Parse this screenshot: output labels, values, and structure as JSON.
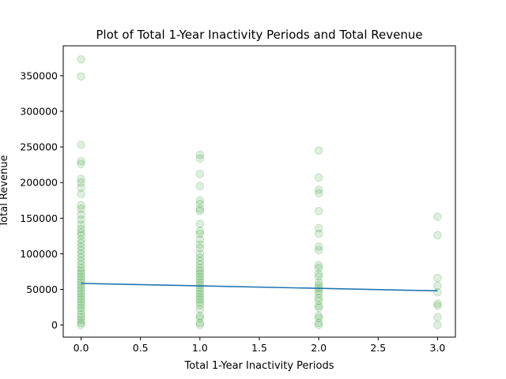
{
  "chart_data": {
    "type": "scatter",
    "title": "Plot of Total 1-Year Inactivity Periods and Total Revenue",
    "xlabel": "Total 1-Year Inactivity Periods",
    "ylabel": "Total Revenue",
    "xlim": [
      -0.15,
      3.15
    ],
    "ylim": [
      -17000,
      392000
    ],
    "x_ticks": [
      0.0,
      0.5,
      1.0,
      1.5,
      2.0,
      2.5,
      3.0
    ],
    "x_tick_labels": [
      "0.0",
      "0.5",
      "1.0",
      "1.5",
      "2.0",
      "2.5",
      "3.0"
    ],
    "y_ticks": [
      0,
      50000,
      100000,
      150000,
      200000,
      250000,
      300000,
      350000
    ],
    "y_tick_labels": [
      "0",
      "50000",
      "100000",
      "150000",
      "200000",
      "250000",
      "300000",
      "350000"
    ],
    "grid": false,
    "colors": {
      "points": "#008000",
      "trend": "#1f77b4",
      "axes": "#000000"
    },
    "series": [
      {
        "type": "scatter",
        "points": [
          {
            "x": 0,
            "y": 373000
          },
          {
            "x": 0,
            "y": 349000
          },
          {
            "x": 0,
            "y": 253000
          },
          {
            "x": 0,
            "y": 230000
          },
          {
            "x": 0,
            "y": 226000
          },
          {
            "x": 0,
            "y": 205000
          },
          {
            "x": 0,
            "y": 200000
          },
          {
            "x": 0,
            "y": 193000
          },
          {
            "x": 0,
            "y": 184000
          },
          {
            "x": 0,
            "y": 168000
          },
          {
            "x": 0,
            "y": 163000
          },
          {
            "x": 0,
            "y": 155000
          },
          {
            "x": 0,
            "y": 148000
          },
          {
            "x": 0,
            "y": 141000
          },
          {
            "x": 0,
            "y": 135000
          },
          {
            "x": 0,
            "y": 130000
          },
          {
            "x": 0,
            "y": 126000
          },
          {
            "x": 0,
            "y": 120000
          },
          {
            "x": 0,
            "y": 115000
          },
          {
            "x": 0,
            "y": 110000
          },
          {
            "x": 0,
            "y": 105000
          },
          {
            "x": 0,
            "y": 100000
          },
          {
            "x": 0,
            "y": 95000
          },
          {
            "x": 0,
            "y": 90000
          },
          {
            "x": 0,
            "y": 85000
          },
          {
            "x": 0,
            "y": 80000
          },
          {
            "x": 0,
            "y": 76000
          },
          {
            "x": 0,
            "y": 72000
          },
          {
            "x": 0,
            "y": 68000
          },
          {
            "x": 0,
            "y": 64000
          },
          {
            "x": 0,
            "y": 60000
          },
          {
            "x": 0,
            "y": 56000
          },
          {
            "x": 0,
            "y": 52000
          },
          {
            "x": 0,
            "y": 48000
          },
          {
            "x": 0,
            "y": 44000
          },
          {
            "x": 0,
            "y": 40000
          },
          {
            "x": 0,
            "y": 36000
          },
          {
            "x": 0,
            "y": 32000
          },
          {
            "x": 0,
            "y": 28000
          },
          {
            "x": 0,
            "y": 24000
          },
          {
            "x": 0,
            "y": 20000
          },
          {
            "x": 0,
            "y": 15000
          },
          {
            "x": 0,
            "y": 11000
          },
          {
            "x": 0,
            "y": 7000
          },
          {
            "x": 0,
            "y": 3000
          },
          {
            "x": 0,
            "y": 0
          },
          {
            "x": 1,
            "y": 239000
          },
          {
            "x": 1,
            "y": 234000
          },
          {
            "x": 1,
            "y": 212000
          },
          {
            "x": 1,
            "y": 195000
          },
          {
            "x": 1,
            "y": 175000
          },
          {
            "x": 1,
            "y": 170000
          },
          {
            "x": 1,
            "y": 163000
          },
          {
            "x": 1,
            "y": 160000
          },
          {
            "x": 1,
            "y": 142000
          },
          {
            "x": 1,
            "y": 132000
          },
          {
            "x": 1,
            "y": 128000
          },
          {
            "x": 1,
            "y": 120000
          },
          {
            "x": 1,
            "y": 113000
          },
          {
            "x": 1,
            "y": 108000
          },
          {
            "x": 1,
            "y": 100000
          },
          {
            "x": 1,
            "y": 95000
          },
          {
            "x": 1,
            "y": 90000
          },
          {
            "x": 1,
            "y": 85000
          },
          {
            "x": 1,
            "y": 80000
          },
          {
            "x": 1,
            "y": 76000
          },
          {
            "x": 1,
            "y": 72000
          },
          {
            "x": 1,
            "y": 68000
          },
          {
            "x": 1,
            "y": 64000
          },
          {
            "x": 1,
            "y": 60000
          },
          {
            "x": 1,
            "y": 56000
          },
          {
            "x": 1,
            "y": 52000
          },
          {
            "x": 1,
            "y": 48000
          },
          {
            "x": 1,
            "y": 44000
          },
          {
            "x": 1,
            "y": 40000
          },
          {
            "x": 1,
            "y": 36000
          },
          {
            "x": 1,
            "y": 32000
          },
          {
            "x": 1,
            "y": 28000
          },
          {
            "x": 1,
            "y": 22000
          },
          {
            "x": 1,
            "y": 13000
          },
          {
            "x": 1,
            "y": 10000
          },
          {
            "x": 1,
            "y": 3000
          },
          {
            "x": 1,
            "y": 0
          },
          {
            "x": 2,
            "y": 245000
          },
          {
            "x": 2,
            "y": 207000
          },
          {
            "x": 2,
            "y": 190000
          },
          {
            "x": 2,
            "y": 185000
          },
          {
            "x": 2,
            "y": 160000
          },
          {
            "x": 2,
            "y": 136000
          },
          {
            "x": 2,
            "y": 128000
          },
          {
            "x": 2,
            "y": 110000
          },
          {
            "x": 2,
            "y": 105000
          },
          {
            "x": 2,
            "y": 84000
          },
          {
            "x": 2,
            "y": 80000
          },
          {
            "x": 2,
            "y": 72000
          },
          {
            "x": 2,
            "y": 68000
          },
          {
            "x": 2,
            "y": 60000
          },
          {
            "x": 2,
            "y": 56000
          },
          {
            "x": 2,
            "y": 52000
          },
          {
            "x": 2,
            "y": 48000
          },
          {
            "x": 2,
            "y": 44000
          },
          {
            "x": 2,
            "y": 38000
          },
          {
            "x": 2,
            "y": 34000
          },
          {
            "x": 2,
            "y": 27000
          },
          {
            "x": 2,
            "y": 24000
          },
          {
            "x": 2,
            "y": 13000
          },
          {
            "x": 2,
            "y": 10000
          },
          {
            "x": 2,
            "y": 3000
          },
          {
            "x": 2,
            "y": 0
          },
          {
            "x": 3,
            "y": 152000
          },
          {
            "x": 3,
            "y": 126000
          },
          {
            "x": 3,
            "y": 66000
          },
          {
            "x": 3,
            "y": 55000
          },
          {
            "x": 3,
            "y": 46000
          },
          {
            "x": 3,
            "y": 30000
          },
          {
            "x": 3,
            "y": 27000
          },
          {
            "x": 3,
            "y": 11000
          },
          {
            "x": 3,
            "y": 0
          }
        ]
      },
      {
        "type": "line",
        "points": [
          {
            "x": 0,
            "y": 58500
          },
          {
            "x": 3,
            "y": 48000
          }
        ]
      }
    ]
  }
}
